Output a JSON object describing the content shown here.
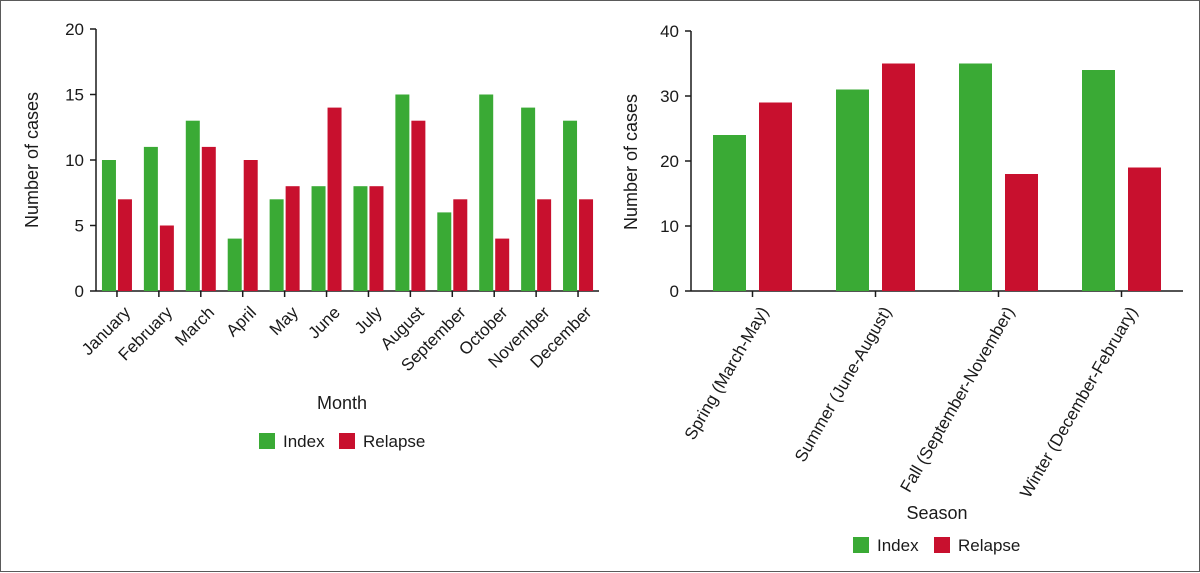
{
  "colors": {
    "index": "#3aaa35",
    "relapse": "#c8102e"
  },
  "chart_data": [
    {
      "type": "bar",
      "title": "",
      "xlabel": "Month",
      "ylabel": "Number of cases",
      "ylim": [
        0,
        20
      ],
      "yticks": [
        0,
        5,
        10,
        15,
        20
      ],
      "grid": false,
      "legend_position": "bottom",
      "categories": [
        "January",
        "February",
        "March",
        "April",
        "May",
        "June",
        "July",
        "August",
        "September",
        "October",
        "November",
        "December"
      ],
      "series": [
        {
          "name": "Index",
          "values": [
            10,
            11,
            13,
            4,
            7,
            8,
            8,
            15,
            6,
            15,
            14,
            13
          ]
        },
        {
          "name": "Relapse",
          "values": [
            7,
            5,
            11,
            10,
            8,
            14,
            8,
            13,
            7,
            4,
            7,
            7
          ]
        }
      ]
    },
    {
      "type": "bar",
      "title": "",
      "xlabel": "Season",
      "ylabel": "Number of cases",
      "ylim": [
        0,
        40
      ],
      "yticks": [
        0,
        10,
        20,
        30,
        40
      ],
      "grid": false,
      "legend_position": "bottom",
      "categories": [
        "Spring (March-May)",
        "Summer (June-August)",
        "Fall (September-November)",
        "Winter (December-February)"
      ],
      "series": [
        {
          "name": "Index",
          "values": [
            24,
            31,
            35,
            34
          ]
        },
        {
          "name": "Relapse",
          "values": [
            29,
            35,
            18,
            19
          ]
        }
      ]
    }
  ]
}
